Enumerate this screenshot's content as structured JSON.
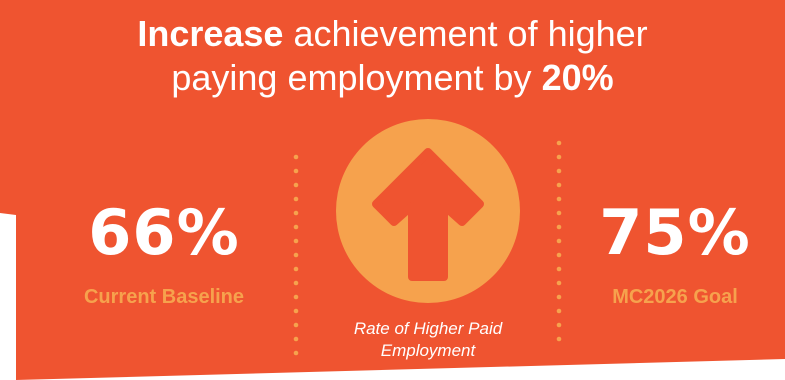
{
  "colors": {
    "background": "#ef5430",
    "accent": "#f6a24d",
    "text": "#ffffff"
  },
  "headline": {
    "line1_bold": "Increase",
    "line1_rest": " achievement of higher",
    "line2_rest": "paying employment by ",
    "line2_bold": "20%"
  },
  "baseline": {
    "value": "66%",
    "label": "Current Baseline"
  },
  "goal": {
    "value": "75%",
    "label": "MC2026 Goal"
  },
  "indicator": {
    "icon": "arrow-up-icon",
    "caption_line1": "Rate of Higher Paid",
    "caption_line2": "Employment"
  }
}
